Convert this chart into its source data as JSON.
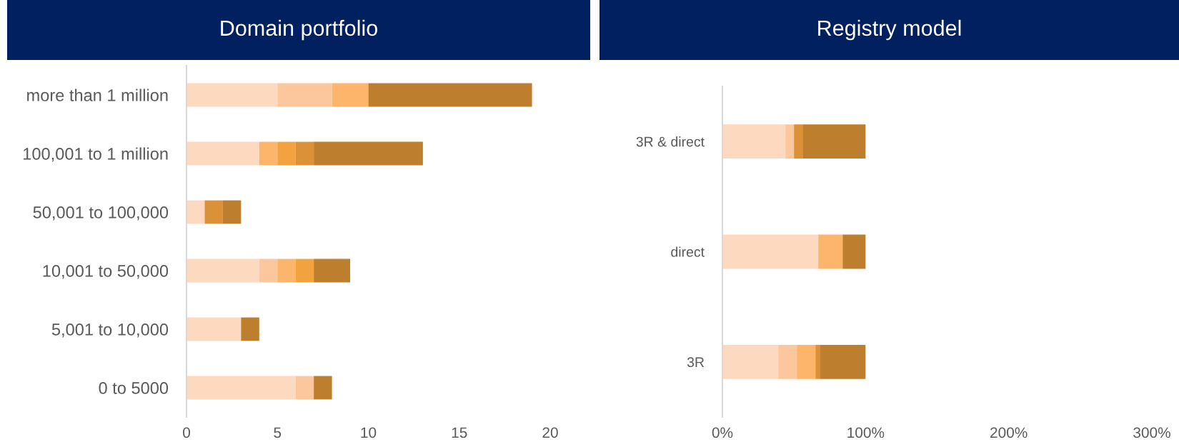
{
  "chart_data": [
    {
      "type": "bar",
      "orientation": "horizontal",
      "stacked": true,
      "title": "Domain portfolio",
      "categories": [
        "more than 1 million",
        "100,001 to 1 million",
        "50,001 to 100,000",
        "10,001 to 50,000",
        "5,001 to 10,000",
        "0 to 5000"
      ],
      "series": [
        {
          "color": "#fdd9c0",
          "values": [
            5,
            4,
            1,
            4,
            3,
            6
          ]
        },
        {
          "color": "#fdc79d",
          "values": [
            3,
            0,
            0,
            1,
            0,
            1
          ]
        },
        {
          "color": "#fdb46b",
          "values": [
            2,
            1,
            0,
            1,
            0,
            0
          ]
        },
        {
          "color": "#f2a340",
          "values": [
            0,
            1,
            0,
            1,
            0,
            0
          ]
        },
        {
          "color": "#db9137",
          "values": [
            0,
            1,
            1,
            0,
            0,
            0
          ]
        },
        {
          "color": "#bd7e2e",
          "values": [
            9,
            6,
            1,
            2,
            1,
            1
          ]
        }
      ],
      "xlim": [
        0,
        20
      ],
      "xticks": [
        0,
        5,
        10,
        15,
        20
      ],
      "grid": false
    },
    {
      "type": "bar",
      "orientation": "horizontal",
      "stacked": true,
      "title": "Registry model",
      "categories": [
        "3R & direct",
        "direct",
        "3R"
      ],
      "series": [
        {
          "color": "#fdd9c0",
          "values": [
            44,
            67,
            39
          ]
        },
        {
          "color": "#fdc79d",
          "values": [
            6,
            0,
            13
          ]
        },
        {
          "color": "#fdb46b",
          "values": [
            0,
            17,
            13
          ]
        },
        {
          "color": "#f2a340",
          "values": [
            0,
            0,
            0
          ]
        },
        {
          "color": "#db9137",
          "values": [
            6,
            0,
            3
          ]
        },
        {
          "color": "#bd7e2e",
          "values": [
            44,
            16,
            32
          ]
        }
      ],
      "xlim": [
        0,
        300
      ],
      "xticks": [
        {
          "value": 0,
          "label": "0%"
        },
        {
          "value": 100,
          "label": "100%"
        },
        {
          "value": 200,
          "label": "200%"
        },
        {
          "value": 300,
          "label": "300%"
        }
      ],
      "grid": false
    }
  ]
}
